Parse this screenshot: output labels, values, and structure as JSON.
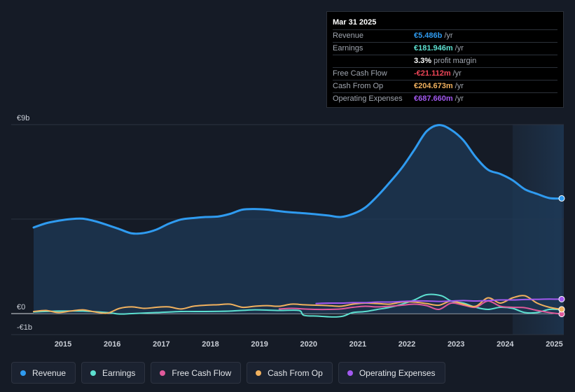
{
  "tooltip": {
    "date": "Mar 31 2025",
    "rows": [
      {
        "key": "Revenue",
        "value": "€5.486b",
        "unit": "/yr",
        "color": "#2f9bf0"
      },
      {
        "key": "Earnings",
        "value": "€181.946m",
        "unit": "/yr",
        "color": "#5de0d0"
      },
      {
        "key": "",
        "value": "3.3%",
        "unit": "profit margin",
        "color": "#ffffff"
      },
      {
        "key": "Free Cash Flow",
        "value": "-€21.112m",
        "unit": "/yr",
        "color": "#ef4658"
      },
      {
        "key": "Cash From Op",
        "value": "€204.673m",
        "unit": "/yr",
        "color": "#f1b15e"
      },
      {
        "key": "Operating Expenses",
        "value": "€687.660m",
        "unit": "/yr",
        "color": "#a259f0"
      }
    ]
  },
  "legend": [
    {
      "label": "Revenue",
      "color": "#2f9bf0"
    },
    {
      "label": "Earnings",
      "color": "#5de0d0"
    },
    {
      "label": "Free Cash Flow",
      "color": "#e05a9b"
    },
    {
      "label": "Cash From Op",
      "color": "#f1b15e"
    },
    {
      "label": "Operating Expenses",
      "color": "#a259f0"
    }
  ],
  "chart_data": {
    "type": "area",
    "title": "",
    "xlabel": "",
    "ylabel": "",
    "y_unit": "€b",
    "ylim": [
      -1,
      9
    ],
    "xlim": [
      2014.5,
      2025.25
    ],
    "y_axis_labels": [
      {
        "value": 9,
        "label": "€9b"
      },
      {
        "value": 0,
        "label": "€0"
      },
      {
        "value": -1,
        "label": "-€1b"
      }
    ],
    "x_ticks": [
      2015,
      2016,
      2017,
      2018,
      2019,
      2020,
      2021,
      2022,
      2023,
      2024,
      2025
    ],
    "x_tick_labels": [
      "2015",
      "2016",
      "2017",
      "2018",
      "2019",
      "2020",
      "2021",
      "2022",
      "2023",
      "2024",
      "2025"
    ],
    "forecast_shade_start": 2024.25,
    "series": [
      {
        "name": "Revenue",
        "color": "#2f9bf0",
        "filled": true,
        "x": [
          2014.5,
          2014.75,
          2015.0,
          2015.25,
          2015.5,
          2015.75,
          2016.0,
          2016.25,
          2016.5,
          2016.75,
          2017.0,
          2017.25,
          2017.5,
          2017.75,
          2018.0,
          2018.25,
          2018.5,
          2018.75,
          2019.0,
          2019.25,
          2019.5,
          2019.75,
          2020.0,
          2020.25,
          2020.5,
          2020.75,
          2021.0,
          2021.25,
          2021.5,
          2021.75,
          2022.0,
          2022.25,
          2022.5,
          2022.75,
          2023.0,
          2023.25,
          2023.5,
          2023.75,
          2024.0,
          2024.25,
          2024.5,
          2024.75,
          2025.0,
          2025.25
        ],
        "values": [
          4.1,
          4.3,
          4.42,
          4.5,
          4.52,
          4.4,
          4.22,
          4.02,
          3.82,
          3.84,
          4.0,
          4.28,
          4.48,
          4.55,
          4.6,
          4.62,
          4.75,
          4.95,
          4.98,
          4.95,
          4.88,
          4.82,
          4.78,
          4.73,
          4.67,
          4.6,
          4.75,
          5.05,
          5.6,
          6.25,
          6.95,
          7.8,
          8.68,
          8.98,
          8.75,
          8.25,
          7.45,
          6.85,
          6.65,
          6.35,
          5.92,
          5.7,
          5.5,
          5.486
        ]
      },
      {
        "name": "Earnings",
        "color": "#5de0d0",
        "filled": false,
        "x": [
          2014.5,
          2015.0,
          2015.5,
          2016.0,
          2016.25,
          2016.5,
          2017.0,
          2017.5,
          2018.0,
          2018.5,
          2019.0,
          2019.5,
          2019.9,
          2020.0,
          2020.3,
          2020.6,
          2020.8,
          2021.0,
          2021.25,
          2021.5,
          2021.75,
          2022.0,
          2022.25,
          2022.5,
          2022.8,
          2023.0,
          2023.25,
          2023.5,
          2023.75,
          2024.0,
          2024.25,
          2024.5,
          2024.75,
          2025.0,
          2025.25
        ],
        "values": [
          0.08,
          0.12,
          0.12,
          0.05,
          -0.02,
          0.0,
          0.05,
          0.1,
          0.1,
          0.12,
          0.18,
          0.15,
          0.15,
          -0.08,
          -0.12,
          -0.16,
          -0.12,
          0.05,
          0.1,
          0.2,
          0.3,
          0.45,
          0.65,
          0.9,
          0.85,
          0.6,
          0.5,
          0.3,
          0.2,
          0.3,
          0.25,
          0.05,
          0.05,
          0.2,
          0.182
        ]
      },
      {
        "name": "Free Cash Flow",
        "color": "#e05a9b",
        "filled": false,
        "x": [
          2019.5,
          2019.75,
          2020.0,
          2020.25,
          2020.5,
          2020.75,
          2021.0,
          2021.25,
          2021.5,
          2021.75,
          2022.0,
          2022.25,
          2022.5,
          2022.75,
          2023.0,
          2023.25,
          2023.5,
          2023.75,
          2024.0,
          2024.25,
          2024.5,
          2024.75,
          2025.0,
          2025.25
        ],
        "values": [
          0.22,
          0.25,
          0.22,
          0.2,
          0.2,
          0.22,
          0.3,
          0.35,
          0.32,
          0.35,
          0.4,
          0.45,
          0.38,
          0.2,
          0.5,
          0.4,
          0.3,
          0.6,
          0.35,
          0.3,
          0.28,
          0.15,
          0.05,
          -0.021
        ]
      },
      {
        "name": "Cash From Op",
        "color": "#f1b15e",
        "filled": false,
        "x": [
          2014.5,
          2014.75,
          2015.0,
          2015.25,
          2015.5,
          2015.75,
          2016.0,
          2016.25,
          2016.5,
          2016.75,
          2017.0,
          2017.25,
          2017.5,
          2017.75,
          2018.0,
          2018.25,
          2018.5,
          2018.75,
          2019.0,
          2019.25,
          2019.5,
          2019.75,
          2020.0,
          2020.25,
          2020.5,
          2020.75,
          2021.0,
          2021.25,
          2021.5,
          2021.75,
          2022.0,
          2022.25,
          2022.5,
          2022.75,
          2023.0,
          2023.25,
          2023.5,
          2023.75,
          2024.0,
          2024.25,
          2024.5,
          2024.75,
          2025.0,
          2025.25
        ],
        "values": [
          0.1,
          0.15,
          0.05,
          0.12,
          0.18,
          0.08,
          0.02,
          0.25,
          0.32,
          0.25,
          0.3,
          0.32,
          0.22,
          0.35,
          0.4,
          0.42,
          0.45,
          0.3,
          0.35,
          0.38,
          0.35,
          0.45,
          0.42,
          0.4,
          0.38,
          0.35,
          0.45,
          0.5,
          0.48,
          0.45,
          0.55,
          0.55,
          0.48,
          0.4,
          0.6,
          0.45,
          0.35,
          0.75,
          0.5,
          0.75,
          0.85,
          0.5,
          0.3,
          0.205
        ]
      },
      {
        "name": "Operating Expenses",
        "color": "#a259f0",
        "filled": false,
        "x": [
          2020.25,
          2020.5,
          2020.75,
          2021.0,
          2021.25,
          2021.5,
          2021.75,
          2022.0,
          2022.25,
          2022.5,
          2022.75,
          2023.0,
          2023.25,
          2023.5,
          2023.75,
          2024.0,
          2024.25,
          2024.5,
          2024.75,
          2025.0,
          2025.25
        ],
        "values": [
          0.48,
          0.5,
          0.5,
          0.52,
          0.52,
          0.55,
          0.55,
          0.58,
          0.6,
          0.6,
          0.58,
          0.6,
          0.62,
          0.6,
          0.62,
          0.65,
          0.65,
          0.67,
          0.68,
          0.69,
          0.688
        ]
      }
    ]
  }
}
